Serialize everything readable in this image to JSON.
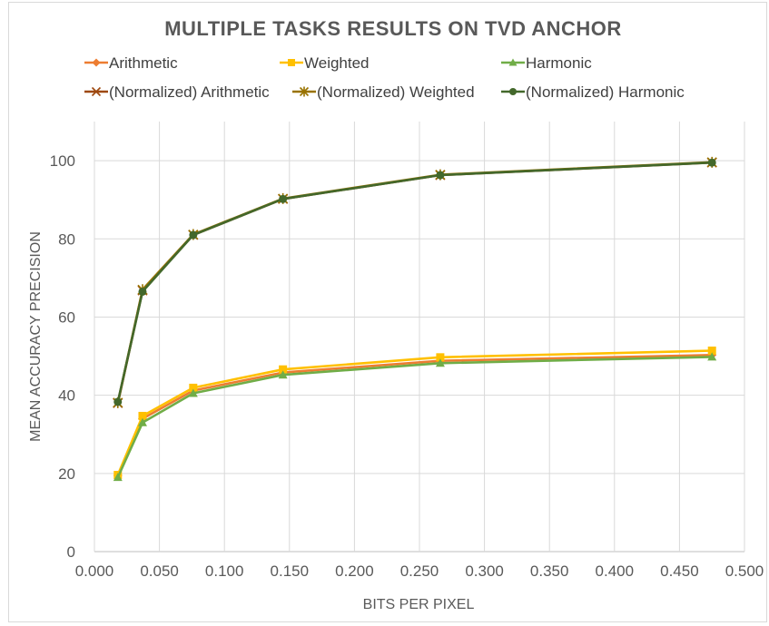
{
  "chart_data": {
    "type": "line",
    "title": "MULTIPLE TASKS RESULTS ON TVD ANCHOR",
    "xlabel": "BITS PER PIXEL",
    "ylabel": "MEAN ACCURACY PRECISION",
    "xlim": [
      0.0,
      0.5
    ],
    "ylim": [
      0,
      110
    ],
    "xticks": [
      "0.000",
      "0.050",
      "0.100",
      "0.150",
      "0.200",
      "0.250",
      "0.300",
      "0.350",
      "0.400",
      "0.450",
      "0.500"
    ],
    "yticks": [
      "0",
      "20",
      "40",
      "60",
      "80",
      "100"
    ],
    "grid": true,
    "legend_position": "top",
    "x": [
      0.018,
      0.037,
      0.076,
      0.145,
      0.266,
      0.475
    ],
    "series": [
      {
        "name": "Arithmetic",
        "color": "#ED7D31",
        "marker": "diamond",
        "values": [
          19.5,
          34.0,
          41.2,
          45.8,
          48.8,
          50.3
        ]
      },
      {
        "name": "Weighted",
        "color": "#FFC000",
        "marker": "square",
        "values": [
          19.6,
          34.7,
          41.9,
          46.6,
          49.7,
          51.4
        ]
      },
      {
        "name": "Harmonic",
        "color": "#70AD47",
        "marker": "triangle",
        "values": [
          19.0,
          33.0,
          40.5,
          45.2,
          48.2,
          49.8
        ]
      },
      {
        "name": "(Normalized) Arithmetic",
        "color": "#9E480E",
        "marker": "x",
        "values": [
          38.0,
          66.8,
          81.0,
          90.2,
          96.3,
          99.5
        ]
      },
      {
        "name": "(Normalized) Weighted",
        "color": "#997300",
        "marker": "star",
        "values": [
          38.1,
          67.0,
          81.1,
          90.3,
          96.4,
          99.6
        ]
      },
      {
        "name": "(Normalized) Harmonic",
        "color": "#43682B",
        "marker": "circle",
        "values": [
          38.3,
          66.5,
          81.0,
          90.2,
          96.3,
          99.5
        ]
      }
    ]
  }
}
